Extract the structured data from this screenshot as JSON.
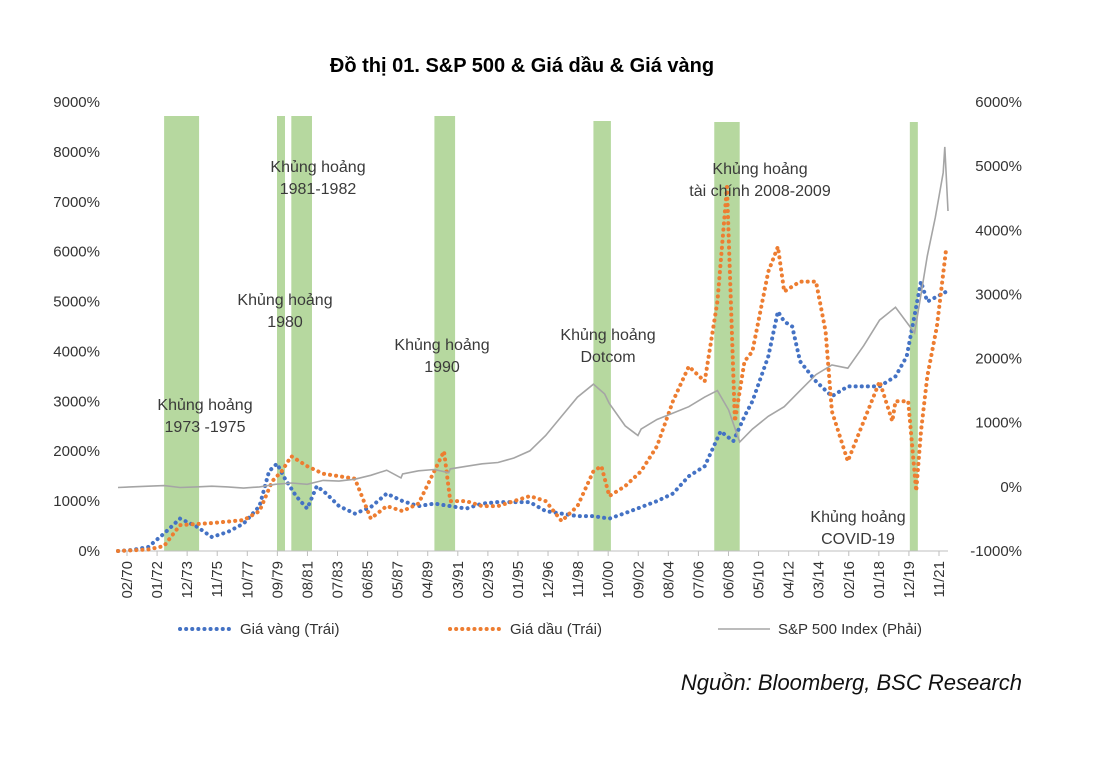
{
  "chart_data": {
    "type": "line",
    "title": "Đồ thị 01. S&P 500 & Giá dầu & Giá vàng",
    "source": "Nguồn: Bloomberg, BSC Research",
    "x_tick_labels": [
      "02/70",
      "01/72",
      "12/73",
      "11/75",
      "10/77",
      "09/79",
      "08/81",
      "07/83",
      "06/85",
      "05/87",
      "04/89",
      "03/91",
      "02/93",
      "01/95",
      "12/96",
      "11/98",
      "10/00",
      "09/02",
      "08/04",
      "07/06",
      "06/08",
      "05/10",
      "04/12",
      "03/14",
      "02/16",
      "01/18",
      "12/19",
      "11/21"
    ],
    "x_range": [
      1970.1,
      2022.3
    ],
    "y_left": {
      "range": [
        0,
        9000
      ],
      "ticks": [
        "0%",
        "1000%",
        "2000%",
        "3000%",
        "4000%",
        "5000%",
        "6000%",
        "7000%",
        "8000%",
        "9000%"
      ]
    },
    "y_right": {
      "range": [
        -1000,
        6000
      ],
      "ticks": [
        "-1000%",
        "0%",
        "1000%",
        "2000%",
        "3000%",
        "4000%",
        "5000%",
        "6000%"
      ]
    },
    "crises": [
      {
        "label_lines": [
          "Khủng hoảng",
          "1973 -1975"
        ],
        "start": 1973.0,
        "end": 1975.2
      },
      {
        "label_lines": [
          "Khủng hoảng",
          "1980"
        ],
        "start": 1980.1,
        "end": 1980.5
      },
      {
        "label_lines": [
          "Khủng hoảng",
          "1981-1982"
        ],
        "start": 1981.0,
        "end": 1982.3
      },
      {
        "label_lines": [
          "Khủng hoảng",
          "1990"
        ],
        "start": 1990.0,
        "end": 1991.3
      },
      {
        "label_lines": [
          "Khủng hoảng",
          "Dotcom"
        ],
        "start": 2000.0,
        "end": 2001.1
      },
      {
        "label_lines": [
          "Khủng hoảng",
          "tài chính 2008-2009"
        ],
        "start": 2007.6,
        "end": 2009.2
      },
      {
        "label_lines": [
          "Khủng hoảng",
          "COVID-19"
        ],
        "start": 2019.9,
        "end": 2020.4
      }
    ],
    "series": [
      {
        "name": "Giá vàng (Trái)",
        "axis": "left",
        "style": "dotted",
        "color": "#4472C4",
        "points": [
          [
            1970.1,
            0
          ],
          [
            1971,
            20
          ],
          [
            1972,
            80
          ],
          [
            1973,
            350
          ],
          [
            1974,
            650
          ],
          [
            1975,
            500
          ],
          [
            1976,
            280
          ],
          [
            1977,
            380
          ],
          [
            1978,
            550
          ],
          [
            1979,
            900
          ],
          [
            1979.6,
            1600
          ],
          [
            1980.1,
            1750
          ],
          [
            1980.6,
            1450
          ],
          [
            1981.3,
            1100
          ],
          [
            1982,
            850
          ],
          [
            1982.6,
            1300
          ],
          [
            1983.2,
            1150
          ],
          [
            1984,
            900
          ],
          [
            1985,
            750
          ],
          [
            1986,
            880
          ],
          [
            1987,
            1150
          ],
          [
            1988,
            1000
          ],
          [
            1989,
            900
          ],
          [
            1990,
            950
          ],
          [
            1991,
            900
          ],
          [
            1992,
            850
          ],
          [
            1993,
            950
          ],
          [
            1994,
            980
          ],
          [
            1995,
            980
          ],
          [
            1996,
            980
          ],
          [
            1997,
            800
          ],
          [
            1998,
            750
          ],
          [
            1999,
            700
          ],
          [
            2000,
            700
          ],
          [
            2001,
            650
          ],
          [
            2002,
            760
          ],
          [
            2003,
            880
          ],
          [
            2004,
            1000
          ],
          [
            2005,
            1150
          ],
          [
            2006,
            1500
          ],
          [
            2007,
            1700
          ],
          [
            2008,
            2400
          ],
          [
            2008.8,
            2200
          ],
          [
            2009.5,
            2700
          ],
          [
            2010,
            3000
          ],
          [
            2011,
            3900
          ],
          [
            2011.6,
            4800
          ],
          [
            2012,
            4600
          ],
          [
            2012.5,
            4500
          ],
          [
            2013,
            3800
          ],
          [
            2014,
            3400
          ],
          [
            2015,
            3100
          ],
          [
            2016,
            3300
          ],
          [
            2017,
            3300
          ],
          [
            2018,
            3300
          ],
          [
            2019,
            3500
          ],
          [
            2019.7,
            3900
          ],
          [
            2020.6,
            5400
          ],
          [
            2021,
            5000
          ],
          [
            2021.6,
            5100
          ],
          [
            2022.2,
            5200
          ]
        ]
      },
      {
        "name": "Giá dầu (Trái)",
        "axis": "left",
        "style": "dotted",
        "color": "#ED7D31",
        "points": [
          [
            1970.1,
            0
          ],
          [
            1972,
            30
          ],
          [
            1973,
            100
          ],
          [
            1974,
            520
          ],
          [
            1976,
            560
          ],
          [
            1978,
            620
          ],
          [
            1979,
            800
          ],
          [
            1979.8,
            1400
          ],
          [
            1980.4,
            1600
          ],
          [
            1981,
            1900
          ],
          [
            1982,
            1700
          ],
          [
            1983,
            1550
          ],
          [
            1984,
            1500
          ],
          [
            1985,
            1450
          ],
          [
            1986,
            650
          ],
          [
            1987,
            900
          ],
          [
            1988,
            800
          ],
          [
            1989,
            950
          ],
          [
            1990.6,
            2000
          ],
          [
            1991,
            1000
          ],
          [
            1992,
            1000
          ],
          [
            1993,
            900
          ],
          [
            1994,
            900
          ],
          [
            1995,
            1000
          ],
          [
            1996,
            1100
          ],
          [
            1997,
            1000
          ],
          [
            1998,
            600
          ],
          [
            1999,
            900
          ],
          [
            2000,
            1600
          ],
          [
            2000.5,
            1700
          ],
          [
            2001,
            1100
          ],
          [
            2002,
            1300
          ],
          [
            2003,
            1600
          ],
          [
            2004,
            2100
          ],
          [
            2005,
            3000
          ],
          [
            2006,
            3700
          ],
          [
            2007,
            3400
          ],
          [
            2007.8,
            5000
          ],
          [
            2008.4,
            7300
          ],
          [
            2008.9,
            2600
          ],
          [
            2009.5,
            3800
          ],
          [
            2010,
            4000
          ],
          [
            2011,
            5600
          ],
          [
            2011.6,
            6100
          ],
          [
            2012,
            5200
          ],
          [
            2013,
            5400
          ],
          [
            2014,
            5400
          ],
          [
            2014.6,
            4400
          ],
          [
            2015,
            2800
          ],
          [
            2016,
            1800
          ],
          [
            2017,
            2600
          ],
          [
            2018,
            3400
          ],
          [
            2018.8,
            2600
          ],
          [
            2019,
            3000
          ],
          [
            2019.8,
            3000
          ],
          [
            2020.3,
            1200
          ],
          [
            2020.6,
            2400
          ],
          [
            2021,
            3500
          ],
          [
            2021.6,
            4500
          ],
          [
            2022.2,
            6100
          ]
        ]
      },
      {
        "name": "S&P 500 Index (Phải)",
        "axis": "right",
        "style": "solid",
        "color": "#A5A5A5",
        "points": [
          [
            1970.1,
            -10
          ],
          [
            1972,
            10
          ],
          [
            1973,
            20
          ],
          [
            1974,
            -10
          ],
          [
            1975,
            0
          ],
          [
            1976,
            10
          ],
          [
            1977,
            0
          ],
          [
            1978,
            -20
          ],
          [
            1979,
            0
          ],
          [
            1980,
            40
          ],
          [
            1981,
            60
          ],
          [
            1982,
            40
          ],
          [
            1983,
            100
          ],
          [
            1984,
            90
          ],
          [
            1985,
            120
          ],
          [
            1986,
            180
          ],
          [
            1987,
            260
          ],
          [
            1987.9,
            140
          ],
          [
            1988,
            200
          ],
          [
            1989,
            250
          ],
          [
            1990,
            270
          ],
          [
            1990.9,
            220
          ],
          [
            1991,
            280
          ],
          [
            1992,
            320
          ],
          [
            1993,
            360
          ],
          [
            1994,
            380
          ],
          [
            1995,
            450
          ],
          [
            1996,
            560
          ],
          [
            1997,
            800
          ],
          [
            1998,
            1100
          ],
          [
            1999,
            1400
          ],
          [
            2000,
            1600
          ],
          [
            2000.7,
            1450
          ],
          [
            2001,
            1300
          ],
          [
            2002,
            950
          ],
          [
            2002.8,
            800
          ],
          [
            2003,
            900
          ],
          [
            2004,
            1050
          ],
          [
            2005,
            1150
          ],
          [
            2006,
            1250
          ],
          [
            2007,
            1400
          ],
          [
            2007.8,
            1500
          ],
          [
            2008.5,
            1200
          ],
          [
            2009.2,
            700
          ],
          [
            2010,
            900
          ],
          [
            2011,
            1100
          ],
          [
            2012,
            1250
          ],
          [
            2013,
            1500
          ],
          [
            2014,
            1750
          ],
          [
            2015,
            1900
          ],
          [
            2016,
            1850
          ],
          [
            2017,
            2200
          ],
          [
            2018,
            2600
          ],
          [
            2019,
            2800
          ],
          [
            2020.2,
            2400
          ],
          [
            2020.6,
            3000
          ],
          [
            2021,
            3600
          ],
          [
            2021.5,
            4200
          ],
          [
            2022,
            4900
          ],
          [
            2022.1,
            5300
          ],
          [
            2022.3,
            4300
          ]
        ]
      }
    ]
  }
}
